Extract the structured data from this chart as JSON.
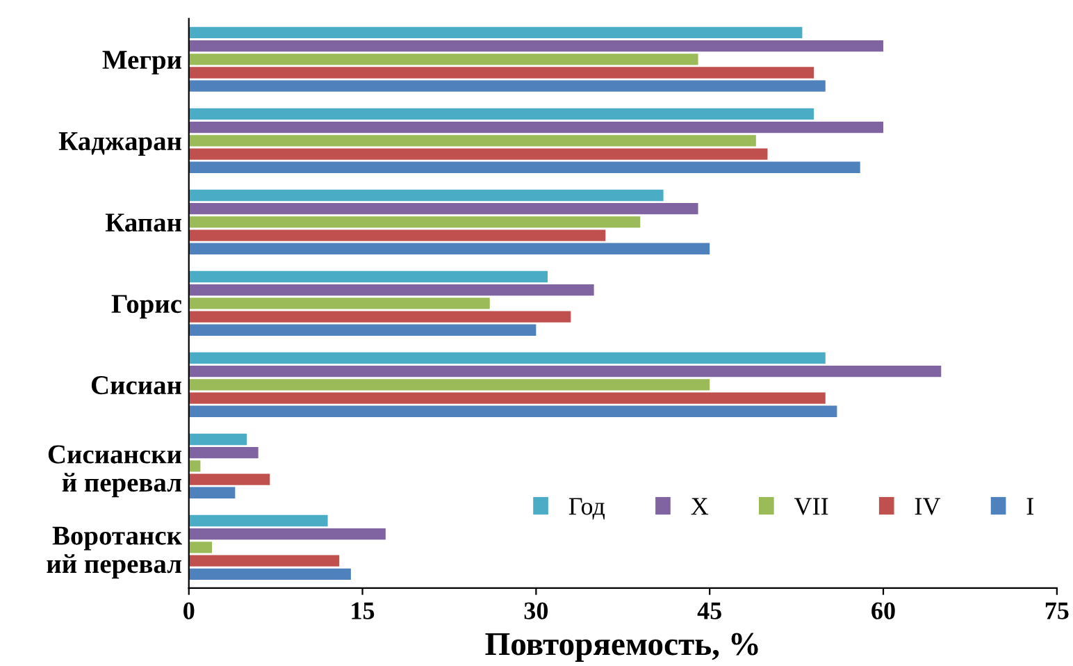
{
  "chart_data": {
    "type": "bar",
    "orientation": "horizontal",
    "xlabel": "Повторяемость, %",
    "categories": [
      "Мегри",
      "Каджаран",
      "Капан",
      "Горис",
      "Сисиан",
      "Сисиански\nй перевал",
      "Воротанск\nий перевал"
    ],
    "series": [
      {
        "name": "Год",
        "color": "#4bacc6",
        "values": [
          53,
          54,
          41,
          31,
          55,
          5,
          12
        ]
      },
      {
        "name": "X",
        "color": "#8064a2",
        "values": [
          60,
          60,
          44,
          35,
          65,
          6,
          17
        ]
      },
      {
        "name": "VII",
        "color": "#9bbb59",
        "values": [
          44,
          49,
          39,
          26,
          45,
          1,
          2
        ]
      },
      {
        "name": "IV",
        "color": "#c0504d",
        "values": [
          54,
          50,
          36,
          33,
          55,
          7,
          13
        ]
      },
      {
        "name": "I",
        "color": "#4f81bd",
        "values": [
          55,
          58,
          45,
          30,
          56,
          4,
          14
        ]
      }
    ],
    "xlim": [
      0,
      75
    ],
    "xticks": [
      0,
      15,
      30,
      45,
      60,
      75
    ],
    "grid": false,
    "legend": "bottom right"
  }
}
